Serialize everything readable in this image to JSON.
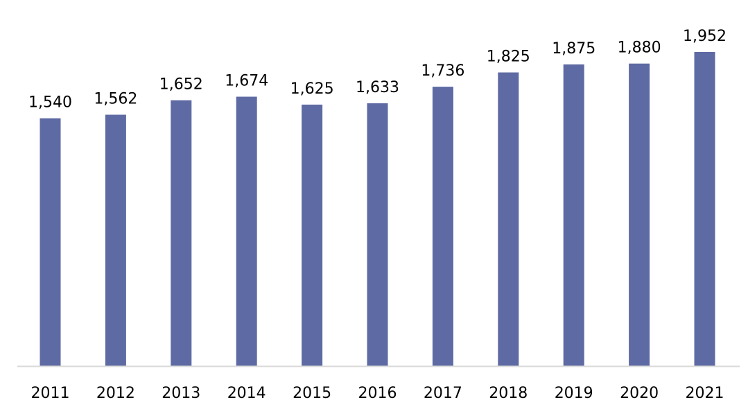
{
  "chart_data": {
    "type": "bar",
    "title": "",
    "xlabel": "",
    "ylabel": "",
    "categories": [
      "2011",
      "2012",
      "2013",
      "2014",
      "2015",
      "2016",
      "2017",
      "2018",
      "2019",
      "2020",
      "2021"
    ],
    "values": [
      1540,
      1562,
      1652,
      1674,
      1625,
      1633,
      1736,
      1825,
      1875,
      1880,
      1952
    ],
    "data_labels": [
      "1,540",
      "1,562",
      "1,652",
      "1,674",
      "1,625",
      "1,633",
      "1,736",
      "1,825",
      "1,875",
      "1,880",
      "1,952"
    ],
    "ylim": [
      0,
      2000
    ],
    "grid": false,
    "legend": "none",
    "bar_color": "#5e6aa3",
    "axis_color": "#d9d9d9"
  }
}
